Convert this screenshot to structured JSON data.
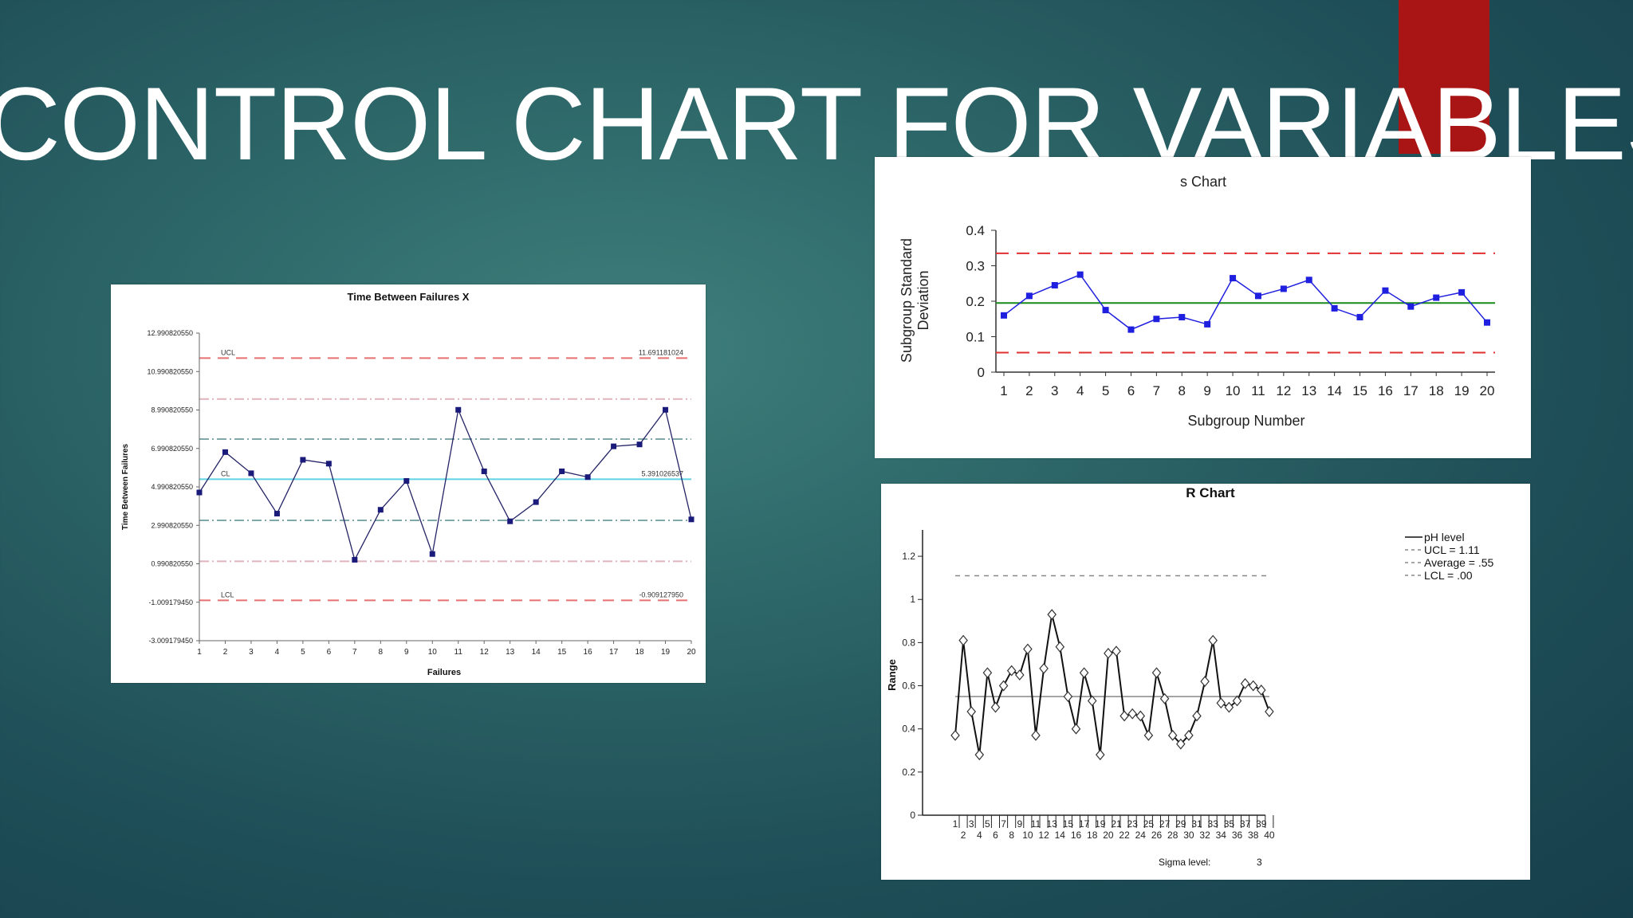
{
  "slide": {
    "title": "CONTROL CHART FOR VARIABLES"
  },
  "colors": {
    "accent": "#a91515",
    "title_text": "#ffffff"
  },
  "chart_data": [
    {
      "id": "x-chart",
      "type": "line",
      "title": "Time Between Failures X",
      "xlabel": "Failures",
      "ylabel": "Time Between Failures",
      "x": [
        1,
        2,
        3,
        4,
        5,
        6,
        7,
        8,
        9,
        10,
        11,
        12,
        13,
        14,
        15,
        16,
        17,
        18,
        19,
        20
      ],
      "ylim": [
        -3.00917945,
        12.99082055
      ],
      "yticks": [
        "12.990820550",
        "10.990820550",
        "8.990820550",
        "6.990820550",
        "4.990820550",
        "2.990820550",
        "0.990820550",
        "-1.009179450",
        "-3.009179450"
      ],
      "series": [
        {
          "values": [
            4.7,
            6.8,
            5.7,
            3.6,
            6.4,
            6.2,
            1.2,
            3.8,
            5.3,
            1.5,
            9.0,
            5.8,
            3.2,
            4.2,
            5.8,
            5.5,
            7.1,
            7.2,
            9.0,
            3.3
          ]
        }
      ],
      "lines": [
        {
          "label": "UCL",
          "value_label": "11.691181024",
          "value": 11.691181024,
          "color": "#e87070",
          "style": "dash"
        },
        {
          "label": "",
          "value": 9.56,
          "color": "#e0b4bc",
          "style": "dashdot"
        },
        {
          "label": "",
          "value": 7.48,
          "color": "#80a8a8",
          "style": "dashdot"
        },
        {
          "label": "CL",
          "value_label": "5.391026537",
          "value": 5.391026537,
          "color": "#5fd3e3",
          "style": "solid"
        },
        {
          "label": "",
          "value": 3.25,
          "color": "#80a8a8",
          "style": "dashdot"
        },
        {
          "label": "",
          "value": 1.12,
          "color": "#e0b4bc",
          "style": "dashdot"
        },
        {
          "label": "LCL",
          "value_label": "-0.909127950",
          "value": -0.90912795,
          "color": "#e87070",
          "style": "dash"
        }
      ],
      "series_color": "#232366",
      "marker_color": "#1a1a7a"
    },
    {
      "id": "s-chart",
      "type": "line",
      "title": "s Chart",
      "xlabel": "Subgroup Number",
      "ylabel": [
        "Subgroup Standard",
        "Deviation"
      ],
      "x": [
        1,
        2,
        3,
        4,
        5,
        6,
        7,
        8,
        9,
        10,
        11,
        12,
        13,
        14,
        15,
        16,
        17,
        18,
        19,
        20
      ],
      "ylim": [
        0,
        0.4
      ],
      "yticks": [
        "0",
        "0.1",
        "0.2",
        "0.3",
        "0.4"
      ],
      "series": [
        {
          "values": [
            0.16,
            0.215,
            0.245,
            0.275,
            0.175,
            0.12,
            0.15,
            0.155,
            0.135,
            0.265,
            0.215,
            0.235,
            0.26,
            0.18,
            0.155,
            0.23,
            0.185,
            0.21,
            0.225,
            0.14
          ]
        }
      ],
      "ucl": 0.335,
      "center": 0.195,
      "lcl": 0.055,
      "series_color": "#1f1fe0",
      "center_color": "#1a8a1a",
      "limit_color": "#e03030"
    },
    {
      "id": "r-chart",
      "type": "line",
      "title": "R Chart",
      "xlabel": "",
      "ylabel": "Range",
      "x": [
        1,
        2,
        3,
        4,
        5,
        6,
        7,
        8,
        9,
        10,
        11,
        12,
        13,
        14,
        15,
        16,
        17,
        18,
        19,
        20,
        21,
        22,
        23,
        24,
        25,
        26,
        27,
        28,
        29,
        30,
        31,
        32,
        33,
        34,
        35,
        36,
        37,
        38,
        39,
        40
      ],
      "ylim": [
        0,
        1.3
      ],
      "yticks": [
        "0",
        "0.2",
        "0.4",
        "0.6",
        "0.8",
        "1",
        "1.2"
      ],
      "series": [
        {
          "name": "pH level",
          "values": [
            0.37,
            0.81,
            0.48,
            0.28,
            0.66,
            0.5,
            0.6,
            0.67,
            0.65,
            0.77,
            0.37,
            0.68,
            0.93,
            0.78,
            0.55,
            0.4,
            0.66,
            0.53,
            0.28,
            0.75,
            0.76,
            0.46,
            0.47,
            0.46,
            0.37,
            0.66,
            0.54,
            0.37,
            0.33,
            0.37,
            0.46,
            0.62,
            0.81,
            0.52,
            0.5,
            0.53,
            0.61,
            0.6,
            0.58,
            0.48
          ]
        }
      ],
      "legend": [
        "pH level",
        "UCL = 1.11",
        "Average = .55",
        "LCL = .00"
      ],
      "ucl": 1.11,
      "average": 0.55,
      "lcl": 0.0,
      "footer": {
        "label": "Sigma level:",
        "value": "3"
      }
    }
  ]
}
